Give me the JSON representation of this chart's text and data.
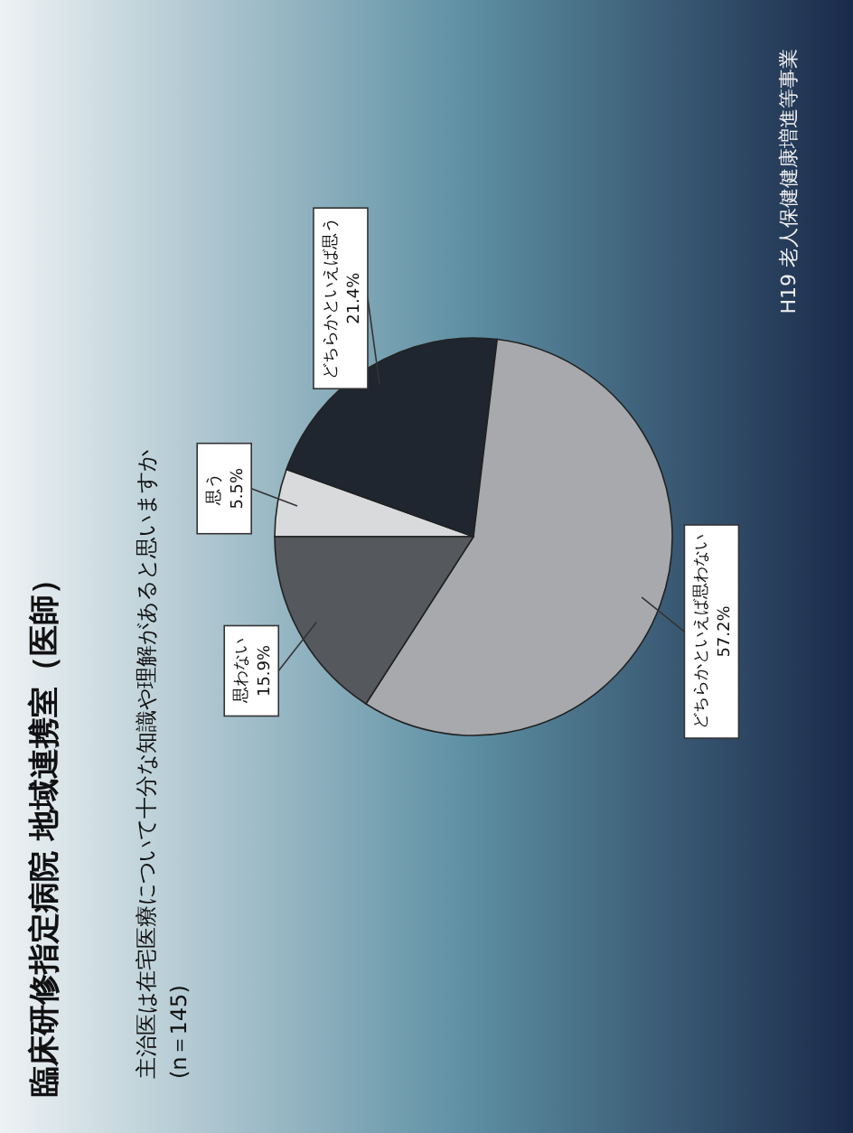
{
  "chart_data": {
    "type": "pie",
    "title": "臨床研修指定病院 地域連携室（医師）",
    "subtitle": "主治医は在宅医療について十分な知識や理解があると思いますか\n(n＝145)",
    "categories": [
      "思う",
      "どちらかといえば思う",
      "どちらかといえば思わない",
      "思わない"
    ],
    "values": [
      5.5,
      21.4,
      57.2,
      15.9
    ],
    "colors": [
      "#d8dadc",
      "#1f2630",
      "#a7a9ac",
      "#55585c"
    ],
    "value_labels": [
      "5.5%",
      "21.4%",
      "57.2%",
      "15.9%"
    ],
    "annotations": [
      "H19 老人保健健康増進等事業"
    ]
  }
}
